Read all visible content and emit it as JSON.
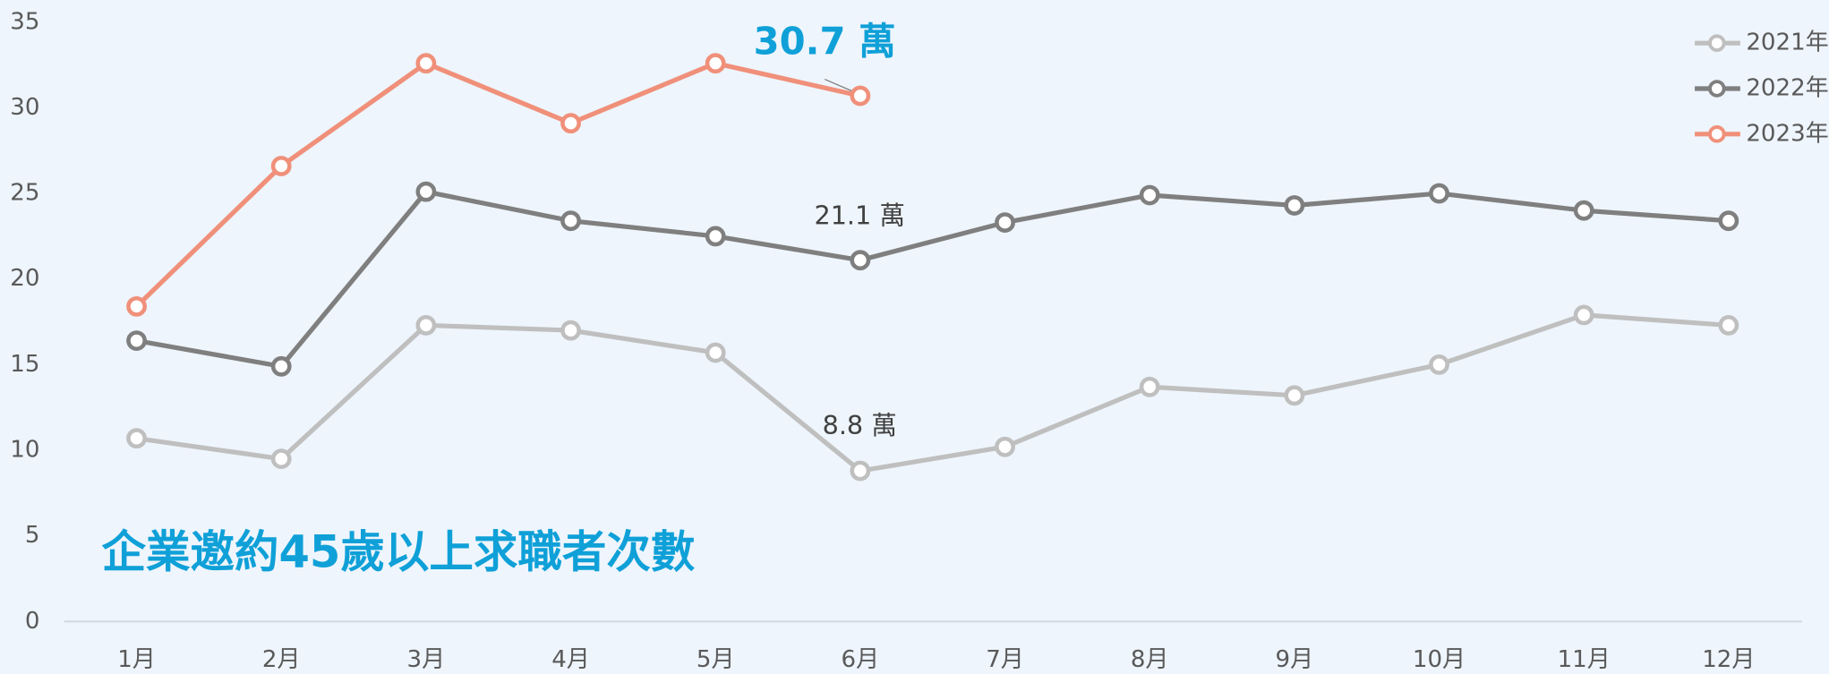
{
  "chart_data": {
    "type": "line",
    "title": "企業邀約45歲以上求職者次數",
    "categories": [
      "1月",
      "2月",
      "3月",
      "4月",
      "5月",
      "6月",
      "7月",
      "8月",
      "9月",
      "10月",
      "11月",
      "12月"
    ],
    "series": [
      {
        "name": "2021年",
        "color": "#bfbfbf",
        "values": [
          10.7,
          9.5,
          17.3,
          17.0,
          15.7,
          8.8,
          10.2,
          13.7,
          13.2,
          15.0,
          17.9,
          17.3
        ]
      },
      {
        "name": "2022年",
        "color": "#7f7f7f",
        "values": [
          16.4,
          14.9,
          25.1,
          23.4,
          22.5,
          21.1,
          23.3,
          24.9,
          24.3,
          25.0,
          24.0,
          23.4
        ]
      },
      {
        "name": "2023年",
        "color": "#f0907a",
        "values": [
          18.4,
          26.6,
          32.6,
          29.1,
          32.6,
          30.7,
          null,
          null,
          null,
          null,
          null,
          null
        ]
      }
    ],
    "annotations": [
      "30.7 萬",
      "21.1 萬",
      "8.8 萬"
    ],
    "ylim": [
      0,
      35
    ],
    "yticks": [
      0,
      5,
      10,
      15,
      20,
      25,
      30,
      35
    ],
    "grid": false,
    "legend": "top-right"
  }
}
